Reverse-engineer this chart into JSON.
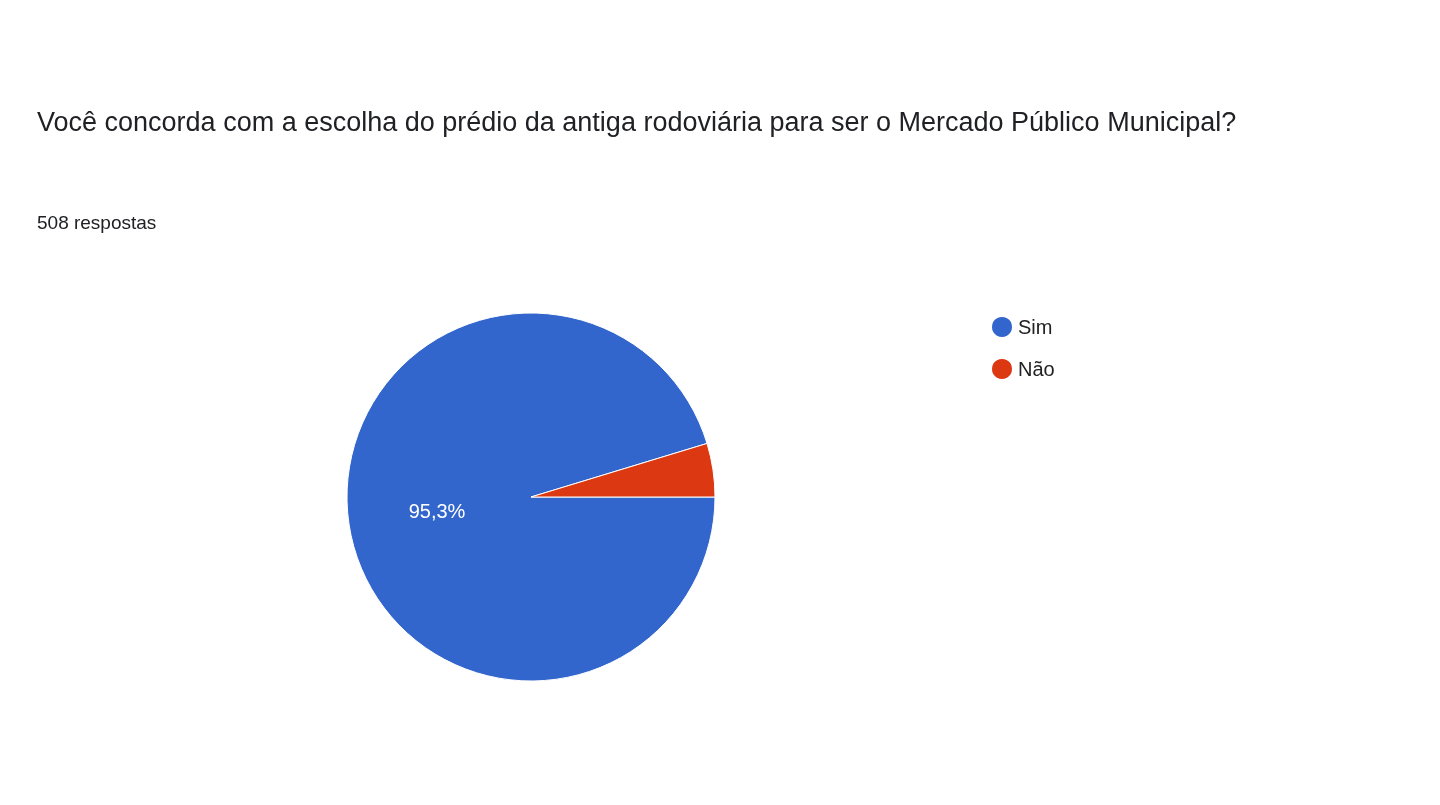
{
  "chart_data": {
    "type": "pie",
    "title": "Você concorda com a escolha do prédio da antiga rodoviária para ser o Mercado Público Municipal?",
    "subtitle": "508 respostas",
    "categories": [
      "Sim",
      "Não"
    ],
    "values": [
      95.3,
      4.7
    ],
    "colors": [
      "#3366cc",
      "#dc3912"
    ],
    "value_labels": [
      "95,3%",
      null
    ],
    "legend": "right"
  }
}
